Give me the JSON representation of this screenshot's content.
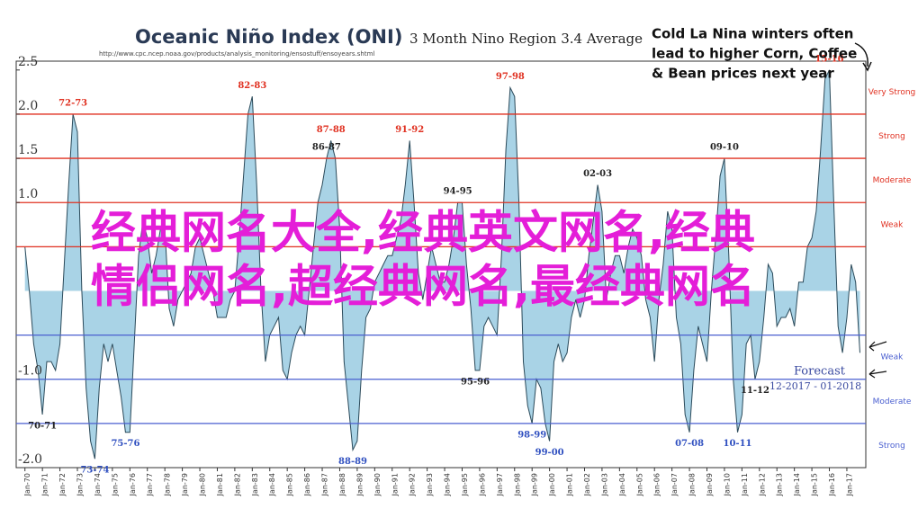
{
  "chart_data": {
    "type": "area",
    "title": "Oceanic Niño Index (ONI)",
    "subtitle": "3 Month Nino Region 3.4 Average",
    "source": "http://www.cpc.ncep.noaa.gov/products/analysis_monitoring/ensostuff/ensoyears.shtml",
    "callout": [
      "Cold La Nina winters often",
      "lead to higher Corn, Coffee",
      "& Bean prices next year"
    ],
    "watermark": [
      "经典网名大全,经典英文网名,经典",
      "情侣网名,超经典网名,最经典网名"
    ],
    "forecast": {
      "label": "Forecast",
      "period": "12-2017 - 01-2018"
    },
    "xlim": [
      "1969-07",
      "2018-02"
    ],
    "ylim": [
      -2.0,
      2.6
    ],
    "yticks": [
      2.5,
      {
        "value": 2.0,
        "label": "2.0"
      },
      1.5,
      {
        "value": 1.0,
        "label": "1.0"
      },
      {
        "value": -1.0,
        "label": "-1.0"
      },
      {
        "value": -2.0,
        "label": "-2.0"
      }
    ],
    "xticks": [
      {
        "value": "1970-01",
        "label": "Jan-70"
      },
      {
        "value": "1971-01",
        "label": "Jan-71"
      },
      {
        "value": "1972-01",
        "label": "Jan-72"
      },
      {
        "value": "1973-01",
        "label": "Jan-73"
      },
      {
        "value": "1974-01",
        "label": "Jan-74"
      },
      {
        "value": "1975-01",
        "label": "Jan-75"
      },
      {
        "value": "1976-01",
        "label": "Jan-76"
      },
      {
        "value": "1977-01",
        "label": "Jan-77"
      },
      {
        "value": "1978-01",
        "label": "Jan-78"
      },
      {
        "value": "1979-01",
        "label": "Jan-79"
      },
      {
        "value": "1980-01",
        "label": "Jan-80"
      },
      {
        "value": "1981-01",
        "label": "Jan-81"
      },
      {
        "value": "1982-01",
        "label": "Jan-82"
      },
      {
        "value": "1983-01",
        "label": "Jan-83"
      },
      {
        "value": "1984-01",
        "label": "Jan-84"
      },
      {
        "value": "1985-01",
        "label": "Jan-85"
      },
      {
        "value": "1986-01",
        "label": "Jan-86"
      },
      {
        "value": "1987-01",
        "label": "Jan-87"
      },
      {
        "value": "1988-01",
        "label": "Jan-88"
      },
      {
        "value": "1989-01",
        "label": "Jan-89"
      },
      {
        "value": "1990-01",
        "label": "Jan-90"
      },
      {
        "value": "1991-01",
        "label": "Jan-91"
      },
      {
        "value": "1992-01",
        "label": "Jan-92"
      },
      {
        "value": "1993-01",
        "label": "Jan-93"
      },
      {
        "value": "1994-01",
        "label": "Jan-94"
      },
      {
        "value": "1995-01",
        "label": "Jan-95"
      },
      {
        "value": "1996-01",
        "label": "Jan-96"
      },
      {
        "value": "1997-01",
        "label": "Jan-97"
      },
      {
        "value": "1998-01",
        "label": "Jan-98"
      },
      {
        "value": "1999-01",
        "label": "Jan-99"
      },
      {
        "value": "2000-01",
        "label": "Jan-00"
      },
      {
        "value": "2001-01",
        "label": "Jan-01"
      },
      {
        "value": "2002-01",
        "label": "Jan-02"
      },
      {
        "value": "2003-01",
        "label": "Jan-03"
      },
      {
        "value": "2004-01",
        "label": "Jan-04"
      },
      {
        "value": "2005-01",
        "label": "Jan-05"
      },
      {
        "value": "2006-01",
        "label": "Jan-06"
      },
      {
        "value": "2007-01",
        "label": "Jan-07"
      },
      {
        "value": "2008-01",
        "label": "Jan-08"
      },
      {
        "value": "2009-01",
        "label": "Jan-09"
      },
      {
        "value": "2010-01",
        "label": "Jan-10"
      },
      {
        "value": "2011-01",
        "label": "Jan-11"
      },
      {
        "value": "2012-01",
        "label": "Jan-12"
      },
      {
        "value": "2013-01",
        "label": "Jan-13"
      },
      {
        "value": "2014-01",
        "label": "Jan-14"
      },
      {
        "value": "2015-01",
        "label": "Jan-15"
      },
      {
        "value": "2016-01",
        "label": "Jan-16"
      },
      {
        "value": "2017-01",
        "label": "Jan-17"
      }
    ],
    "thresholds": [
      {
        "value": 2.0,
        "label": "Very Strong",
        "color": "#e03020"
      },
      {
        "value": 1.5,
        "label": "Strong",
        "color": "#e03020"
      },
      {
        "value": 1.0,
        "label": "Moderate",
        "color": "#e03020"
      },
      {
        "value": 0.5,
        "label": "Weak",
        "color": "#e03020"
      },
      {
        "value": -0.5,
        "label": "Weak",
        "color": "#4a5fd0"
      },
      {
        "value": -1.0,
        "label": "Moderate",
        "color": "#4a5fd0"
      },
      {
        "value": -1.5,
        "label": "Strong",
        "color": "#4a5fd0"
      }
    ],
    "el_nino_labels": [
      {
        "text": "72-73",
        "color": "#e03020"
      },
      {
        "text": "82-83",
        "color": "#e03020"
      },
      {
        "text": "86-87",
        "color": "#222222"
      },
      {
        "text": "87-88",
        "color": "#e03020"
      },
      {
        "text": "91-92",
        "color": "#e03020"
      },
      {
        "text": "94-95",
        "color": "#222222"
      },
      {
        "text": "97-98",
        "color": "#e03020"
      },
      {
        "text": "02-03",
        "color": "#222222"
      },
      {
        "text": "09-10",
        "color": "#222222"
      },
      {
        "text": "15-16",
        "color": "#e03020"
      }
    ],
    "la_nina_labels": [
      {
        "text": "70-71",
        "color": "#222222"
      },
      {
        "text": "73-74",
        "color": "#3050c0"
      },
      {
        "text": "75-76",
        "color": "#3050c0"
      },
      {
        "text": "88-89",
        "color": "#3050c0"
      },
      {
        "text": "95-96",
        "color": "#222222"
      },
      {
        "text": "98-99",
        "color": "#3050c0"
      },
      {
        "text": "99-00",
        "color": "#3050c0"
      },
      {
        "text": "07-08",
        "color": "#3050c0"
      },
      {
        "text": "10-11",
        "color": "#3050c0"
      },
      {
        "text": "11-12",
        "color": "#222222"
      }
    ],
    "fill": "#a9d3e6",
    "stroke": "#2b4a5a",
    "x": [
      "1970-01",
      "1970-04",
      "1970-07",
      "1970-10",
      "1971-01",
      "1971-04",
      "1971-07",
      "1971-10",
      "1972-01",
      "1972-04",
      "1972-07",
      "1972-10",
      "1973-01",
      "1973-04",
      "1973-07",
      "1973-10",
      "1974-01",
      "1974-04",
      "1974-07",
      "1974-10",
      "1975-01",
      "1975-04",
      "1975-07",
      "1975-10",
      "1976-01",
      "1976-04",
      "1976-07",
      "1976-10",
      "1977-01",
      "1977-04",
      "1977-07",
      "1977-10",
      "1978-01",
      "1978-04",
      "1978-07",
      "1978-10",
      "1979-01",
      "1979-04",
      "1979-07",
      "1979-10",
      "1980-01",
      "1980-04",
      "1980-07",
      "1980-10",
      "1981-01",
      "1981-04",
      "1981-07",
      "1981-10",
      "1982-01",
      "1982-04",
      "1982-07",
      "1982-10",
      "1983-01",
      "1983-04",
      "1983-07",
      "1983-10",
      "1984-01",
      "1984-04",
      "1984-07",
      "1984-10",
      "1985-01",
      "1985-04",
      "1985-07",
      "1985-10",
      "1986-01",
      "1986-04",
      "1986-07",
      "1986-10",
      "1987-01",
      "1987-04",
      "1987-07",
      "1987-10",
      "1988-01",
      "1988-04",
      "1988-07",
      "1988-10",
      "1989-01",
      "1989-04",
      "1989-07",
      "1989-10",
      "1990-01",
      "1990-04",
      "1990-07",
      "1990-10",
      "1991-01",
      "1991-04",
      "1991-07",
      "1991-10",
      "1992-01",
      "1992-04",
      "1992-07",
      "1992-10",
      "1993-01",
      "1993-04",
      "1993-07",
      "1993-10",
      "1994-01",
      "1994-04",
      "1994-07",
      "1994-10",
      "1995-01",
      "1995-04",
      "1995-07",
      "1995-10",
      "1996-01",
      "1996-04",
      "1996-07",
      "1996-10",
      "1997-01",
      "1997-04",
      "1997-07",
      "1997-10",
      "1998-01",
      "1998-04",
      "1998-07",
      "1998-10",
      "1999-01",
      "1999-04",
      "1999-07",
      "1999-10",
      "2000-01",
      "2000-04",
      "2000-07",
      "2000-10",
      "2001-01",
      "2001-04",
      "2001-07",
      "2001-10",
      "2002-01",
      "2002-04",
      "2002-07",
      "2002-10",
      "2003-01",
      "2003-04",
      "2003-07",
      "2003-10",
      "2004-01",
      "2004-04",
      "2004-07",
      "2004-10",
      "2005-01",
      "2005-04",
      "2005-07",
      "2005-10",
      "2006-01",
      "2006-04",
      "2006-07",
      "2006-10",
      "2007-01",
      "2007-04",
      "2007-07",
      "2007-10",
      "2008-01",
      "2008-04",
      "2008-07",
      "2008-10",
      "2009-01",
      "2009-04",
      "2009-07",
      "2009-10",
      "2010-01",
      "2010-04",
      "2010-07",
      "2010-10",
      "2011-01",
      "2011-04",
      "2011-07",
      "2011-10",
      "2012-01",
      "2012-04",
      "2012-07",
      "2012-10",
      "2013-01",
      "2013-04",
      "2013-07",
      "2013-10",
      "2014-01",
      "2014-04",
      "2014-07",
      "2014-10",
      "2015-01",
      "2015-04",
      "2015-07",
      "2015-10",
      "2016-01",
      "2016-04",
      "2016-07",
      "2016-10",
      "2017-01",
      "2017-04",
      "2017-07",
      "2017-10"
    ],
    "values": [
      0.5,
      0.0,
      -0.6,
      -0.9,
      -1.4,
      -0.8,
      -0.8,
      -0.9,
      -0.6,
      0.3,
      1.2,
      2.0,
      1.8,
      0.0,
      -1.1,
      -1.7,
      -1.9,
      -1.1,
      -0.6,
      -0.8,
      -0.6,
      -0.9,
      -1.2,
      -1.6,
      -1.6,
      -0.6,
      0.4,
      0.8,
      0.6,
      0.2,
      0.4,
      0.7,
      0.7,
      -0.2,
      -0.4,
      -0.1,
      0.0,
      0.1,
      0.2,
      0.5,
      0.6,
      0.4,
      0.2,
      0.0,
      -0.3,
      -0.3,
      -0.3,
      -0.1,
      0.0,
      0.6,
      1.3,
      2.0,
      2.2,
      1.2,
      0.0,
      -0.8,
      -0.5,
      -0.4,
      -0.3,
      -0.9,
      -1.0,
      -0.7,
      -0.5,
      -0.4,
      -0.5,
      0.0,
      0.5,
      1.0,
      1.2,
      1.5,
      1.7,
      1.5,
      0.7,
      -0.8,
      -1.3,
      -1.8,
      -1.7,
      -0.9,
      -0.3,
      -0.2,
      0.1,
      0.2,
      0.3,
      0.4,
      0.4,
      0.6,
      0.8,
      1.2,
      1.7,
      1.0,
      0.2,
      -0.1,
      0.2,
      0.5,
      0.3,
      0.1,
      0.1,
      0.3,
      0.6,
      1.0,
      1.0,
      0.3,
      -0.2,
      -0.9,
      -0.9,
      -0.4,
      -0.3,
      -0.4,
      -0.5,
      0.4,
      1.6,
      2.3,
      2.2,
      1.0,
      -0.8,
      -1.3,
      -1.5,
      -1.0,
      -1.1,
      -1.5,
      -1.7,
      -0.8,
      -0.6,
      -0.8,
      -0.7,
      -0.3,
      -0.1,
      -0.3,
      -0.1,
      0.4,
      0.8,
      1.2,
      0.9,
      -0.1,
      0.2,
      0.4,
      0.4,
      0.2,
      0.5,
      0.7,
      0.6,
      0.4,
      -0.1,
      -0.3,
      -0.8,
      -0.1,
      0.3,
      0.9,
      0.7,
      -0.3,
      -0.6,
      -1.4,
      -1.6,
      -0.9,
      -0.4,
      -0.6,
      -0.8,
      0.0,
      0.6,
      1.3,
      1.5,
      0.4,
      -1.0,
      -1.6,
      -1.4,
      -0.6,
      -0.5,
      -1.0,
      -0.8,
      -0.3,
      0.3,
      0.2,
      -0.4,
      -0.3,
      -0.3,
      -0.2,
      -0.4,
      0.1,
      0.1,
      0.5,
      0.6,
      0.9,
      1.6,
      2.4,
      2.5,
      1.0,
      -0.4,
      -0.7,
      -0.3,
      0.3,
      0.1,
      -0.7
    ]
  }
}
